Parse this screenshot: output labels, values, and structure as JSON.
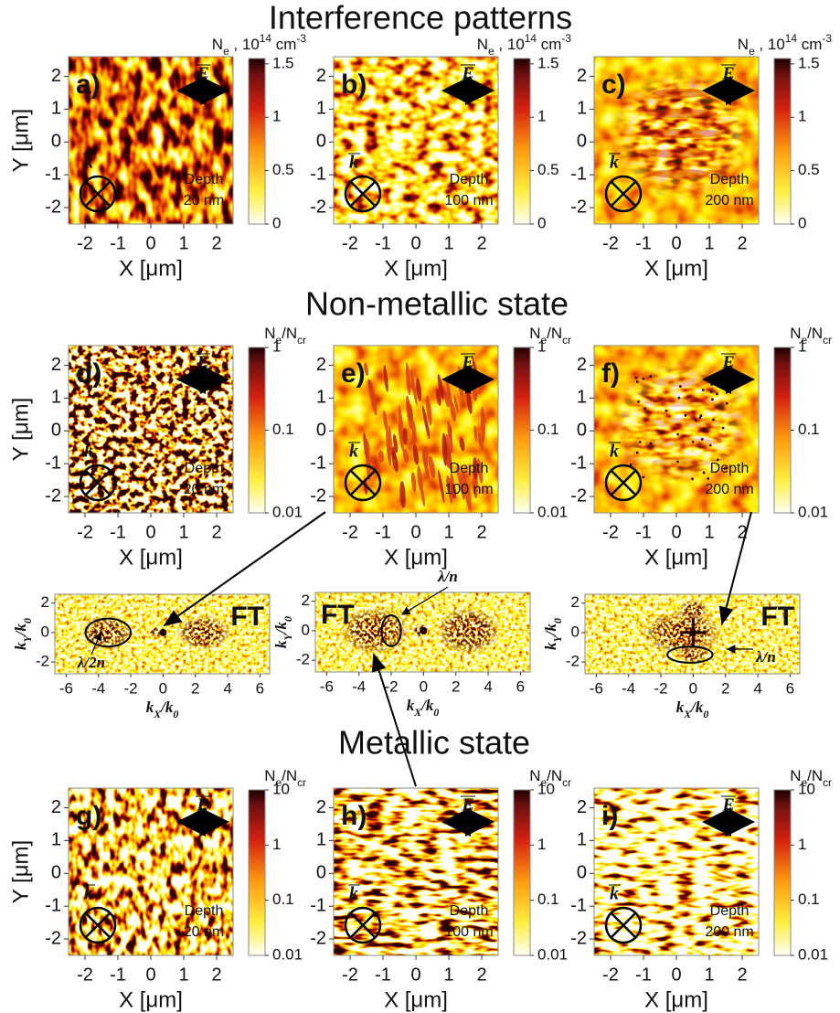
{
  "sections": [
    {
      "title": "Interference patterns"
    },
    {
      "title": "Non-metallic state"
    },
    {
      "title": "Metallic state"
    }
  ],
  "axes": {
    "xlim": [
      -2.5,
      2.5
    ],
    "ylim": [
      -2.5,
      2.6
    ],
    "xticks": [
      -2,
      -1,
      0,
      1,
      2
    ],
    "yticks": [
      -2,
      -1,
      0,
      1,
      2
    ],
    "xlabel": "X [μm]",
    "ylabel": "Y [μm]",
    "e_label": "E",
    "k_label": "k",
    "depth_title": "Depth"
  },
  "rows": [
    {
      "colorbar": {
        "label": [
          [
            "N",
            ""
          ],
          [
            "e",
            "sub"
          ],
          [
            " , 10",
            ""
          ],
          [
            "14",
            "sup"
          ],
          [
            " cm",
            ""
          ],
          [
            "-3",
            "sup"
          ]
        ],
        "scale": "linear",
        "lim": [
          0,
          1.55
        ],
        "ticks": [
          0,
          0.5,
          1,
          1.5
        ]
      },
      "panels": [
        {
          "label": "a)",
          "depth": "20 nm"
        },
        {
          "label": "b)",
          "depth": "100 nm"
        },
        {
          "label": "c)",
          "depth": "200 nm"
        }
      ]
    },
    {
      "colorbar": {
        "label": [
          [
            "N",
            ""
          ],
          [
            "e",
            "sub"
          ],
          [
            "/N",
            ""
          ],
          [
            "cr",
            "sub"
          ]
        ],
        "scale": "log",
        "lim": [
          0.01,
          1
        ],
        "ticks": [
          0.01,
          0.1,
          1
        ]
      },
      "panels": [
        {
          "label": "d)",
          "depth": "20 nm"
        },
        {
          "label": "e)",
          "depth": "100 nm"
        },
        {
          "label": "f)",
          "depth": "200 nm"
        }
      ]
    },
    {
      "colorbar": {
        "label": [
          [
            "N",
            ""
          ],
          [
            "e",
            "sub"
          ],
          [
            "/N",
            ""
          ],
          [
            "cr",
            "sub"
          ]
        ],
        "scale": "log",
        "lim": [
          0.01,
          10
        ],
        "ticks": [
          0.01,
          0.1,
          1,
          10
        ]
      },
      "panels": [
        {
          "label": "g)",
          "depth": "20 nm"
        },
        {
          "label": "h)",
          "depth": "100 nm"
        },
        {
          "label": "i)",
          "depth": "200 nm"
        }
      ]
    }
  ],
  "ft": {
    "xlim": [
      -6.7,
      6.6
    ],
    "ylim": [
      -2.8,
      2.6
    ],
    "xticks": [
      -6,
      -4,
      -2,
      0,
      2,
      4,
      6
    ],
    "yticks": [
      -2,
      0,
      2
    ],
    "xlabel": [
      [
        "k",
        ""
      ],
      [
        "X",
        "sub"
      ],
      [
        "/k",
        ""
      ],
      [
        "0",
        "sub"
      ]
    ],
    "ylabel": [
      [
        "k",
        ""
      ],
      [
        "Y",
        "sub"
      ],
      [
        "/k",
        ""
      ],
      [
        "0",
        "sub"
      ]
    ],
    "tag": "FT",
    "panels": [
      {
        "annotation": "λ/2n"
      },
      {
        "annotation": "λ/n"
      },
      {
        "annotation": "λ/n"
      }
    ]
  }
}
